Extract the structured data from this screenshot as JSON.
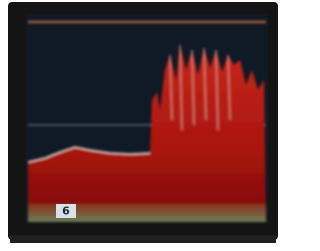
{
  "screen": {
    "label": "6"
  }
}
